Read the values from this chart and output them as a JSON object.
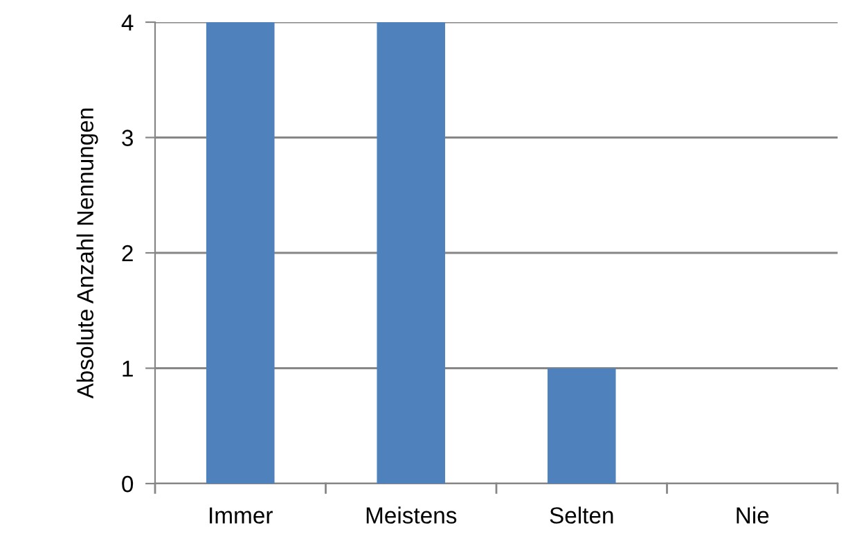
{
  "chart_data": {
    "type": "bar",
    "ylabel": "Absolute Anzahl Nennungen",
    "categories": [
      "Immer",
      "Meistens",
      "Selten",
      "Nie"
    ],
    "values": [
      4,
      4,
      1,
      0
    ],
    "color": "#4f81bd",
    "ylim": [
      0,
      4
    ],
    "yticks": [
      0,
      1,
      2,
      3,
      4
    ],
    "grid": "y",
    "legend": false
  }
}
